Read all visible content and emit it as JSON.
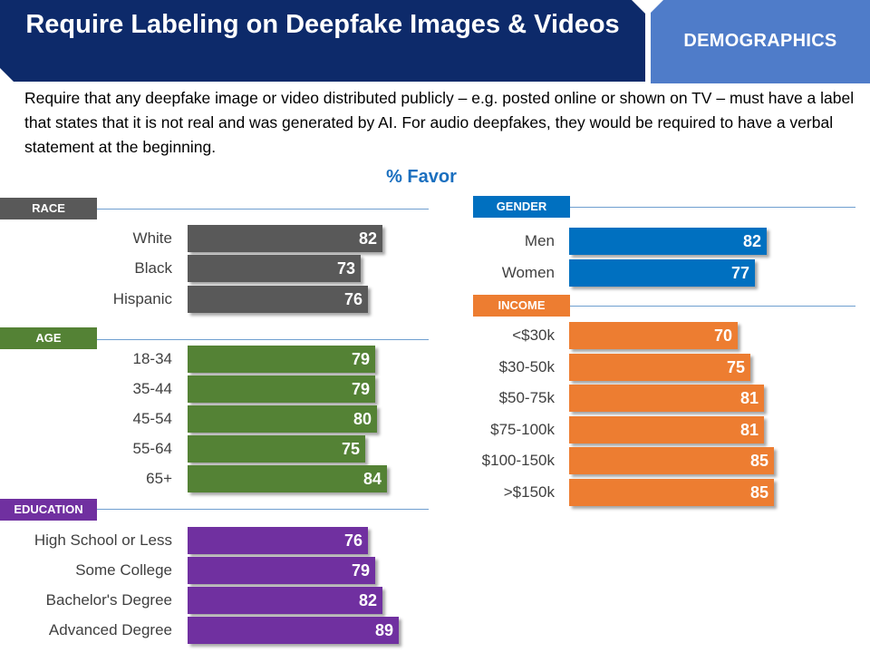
{
  "header": {
    "title": "Require Labeling on Deepfake Images & Videos",
    "tab_label": "DEMOGRAPHICS",
    "title_color": "#0d2a6a",
    "tab_color": "#4f7cc9"
  },
  "subtitle": "Require that any deepfake image or video distributed publicly – e.g. posted online or shown on TV – must have a label that states that it is not real and was generated by AI. For audio deepfakes, they would be required to have a verbal statement at the beginning.",
  "chart_data": {
    "type": "bar",
    "orientation": "horizontal",
    "title": "% Favor",
    "xlim": [
      0,
      100
    ],
    "grid": false,
    "groups": [
      {
        "name": "RACE",
        "color": "#595959",
        "categories": [
          "White",
          "Black",
          "Hispanic"
        ],
        "values": [
          82,
          73,
          76
        ]
      },
      {
        "name": "AGE",
        "color": "#548235",
        "categories": [
          "18-34",
          "35-44",
          "45-54",
          "55-64",
          "65+"
        ],
        "values": [
          79,
          79,
          80,
          75,
          84
        ]
      },
      {
        "name": "EDUCATION",
        "color": "#7030a0",
        "categories": [
          "High School or Less",
          "Some College",
          "Bachelor's Degree",
          "Advanced Degree"
        ],
        "values": [
          76,
          79,
          82,
          89
        ]
      },
      {
        "name": "GENDER",
        "color": "#0070c0",
        "categories": [
          "Men",
          "Women"
        ],
        "values": [
          82,
          77
        ]
      },
      {
        "name": "INCOME",
        "color": "#ed7d31",
        "categories": [
          "<$30k",
          "$30-50k",
          "$50-75k",
          "$75-100k",
          "$100-150k",
          ">$150k"
        ],
        "values": [
          70,
          75,
          81,
          81,
          85,
          85
        ]
      }
    ]
  }
}
